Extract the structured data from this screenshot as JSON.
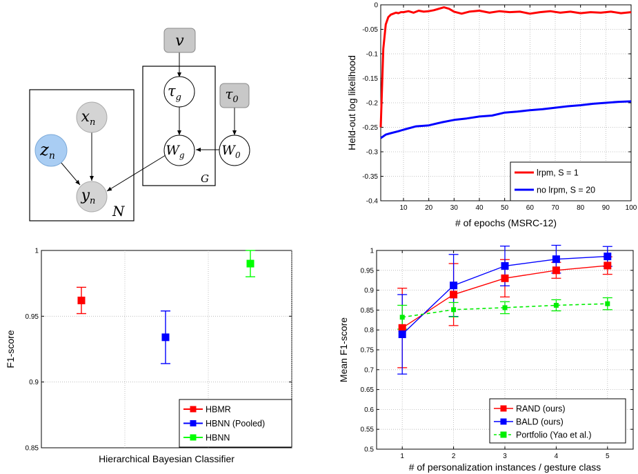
{
  "diagram": {
    "nodes": {
      "v": "v",
      "tau_g": "τ",
      "tau_g_sub": "g",
      "tau_0": "τ",
      "tau_0_sub": "0",
      "x_n": "x",
      "x_n_sub": "n",
      "z_n": "z",
      "z_n_sub": "n",
      "y_n": "y",
      "y_n_sub": "n",
      "W_g": "W",
      "W_g_sub": "g",
      "W_0": "W",
      "W_0_sub": "0"
    },
    "plates": {
      "N": "N",
      "G": "G"
    },
    "colors": {
      "observed": "#d4d4d4",
      "latent": "#ffffff",
      "highlight": "#a9cdf3",
      "hyper": "#c8c8c8"
    }
  },
  "chart_data": [
    {
      "type": "line",
      "xlabel": "# of epochs (MSRC-12)",
      "ylabel": "Held-out log likelihood",
      "xlim": [
        1,
        100
      ],
      "ylim": [
        -0.4,
        0
      ],
      "xticks": [
        10,
        20,
        30,
        40,
        50,
        60,
        70,
        80,
        90,
        100
      ],
      "yticks": [
        0,
        -0.05,
        -0.1,
        -0.15,
        -0.2,
        -0.25,
        -0.3,
        -0.35,
        -0.4
      ],
      "ytick_labels": [
        "0",
        "-0.05",
        "-0.1",
        "-0.15",
        "-0.2",
        "-0.25",
        "-0.3",
        "-0.35",
        "-0.4"
      ],
      "grid": true,
      "legend_position": "bottom-right",
      "series": [
        {
          "name": "lrpm, S = 1",
          "color": "#ff0000",
          "x": [
            1,
            2,
            3,
            4,
            5,
            6,
            7,
            8,
            9,
            10,
            12,
            14,
            16,
            18,
            20,
            22,
            24,
            26,
            28,
            30,
            33,
            36,
            40,
            44,
            48,
            52,
            56,
            60,
            64,
            68,
            72,
            76,
            80,
            84,
            88,
            92,
            96,
            100
          ],
          "values": [
            -0.25,
            -0.09,
            -0.04,
            -0.025,
            -0.02,
            -0.018,
            -0.016,
            -0.017,
            -0.015,
            -0.015,
            -0.013,
            -0.016,
            -0.012,
            -0.014,
            -0.013,
            -0.011,
            -0.008,
            -0.005,
            -0.008,
            -0.014,
            -0.018,
            -0.014,
            -0.012,
            -0.016,
            -0.013,
            -0.015,
            -0.014,
            -0.018,
            -0.015,
            -0.013,
            -0.016,
            -0.014,
            -0.017,
            -0.015,
            -0.016,
            -0.014,
            -0.017,
            -0.015
          ]
        },
        {
          "name": "no lrpm, S = 20",
          "color": "#0000ff",
          "x": [
            1,
            3,
            5,
            8,
            10,
            15,
            20,
            25,
            30,
            35,
            40,
            45,
            50,
            55,
            60,
            65,
            70,
            75,
            80,
            85,
            90,
            95,
            100
          ],
          "values": [
            -0.272,
            -0.265,
            -0.262,
            -0.258,
            -0.255,
            -0.248,
            -0.246,
            -0.24,
            -0.235,
            -0.232,
            -0.228,
            -0.226,
            -0.22,
            -0.218,
            -0.215,
            -0.213,
            -0.21,
            -0.207,
            -0.205,
            -0.202,
            -0.2,
            -0.198,
            -0.197
          ]
        }
      ]
    },
    {
      "type": "scatter",
      "xlabel": "Hierarchical Bayesian Classifier",
      "ylabel": "F1-score",
      "ylim": [
        0.85,
        1
      ],
      "yticks": [
        0.85,
        0.9,
        0.95,
        1
      ],
      "ytick_labels": [
        "0.85",
        "0.9",
        "0.95",
        "1"
      ],
      "grid": true,
      "legend_position": "bottom-right",
      "series": [
        {
          "name": "HBMR",
          "color": "#ff0000",
          "x": 1,
          "value": 0.962,
          "err": 0.01
        },
        {
          "name": "HBNN (Pooled)",
          "color": "#0000ff",
          "x": 2,
          "value": 0.934,
          "err": 0.02
        },
        {
          "name": "HBNN",
          "color": "#00ff00",
          "x": 3,
          "value": 0.99,
          "err": 0.01
        }
      ]
    },
    {
      "type": "line",
      "xlabel": "# of personalization instances / gesture class",
      "ylabel": "Mean F1-score",
      "xlim": [
        0.5,
        5.5
      ],
      "ylim": [
        0.5,
        1
      ],
      "xticks": [
        1,
        2,
        3,
        4,
        5
      ],
      "yticks": [
        0.5,
        0.55,
        0.6,
        0.65,
        0.7,
        0.75,
        0.8,
        0.85,
        0.9,
        0.95,
        1
      ],
      "ytick_labels": [
        "0.5",
        "0.55",
        "0.6",
        "0.65",
        "0.7",
        "0.75",
        "0.8",
        "0.85",
        "0.9",
        "0.95",
        "1"
      ],
      "grid": true,
      "legend_position": "bottom-right",
      "series": [
        {
          "name": "RAND (ours)",
          "color": "#ff0000",
          "x": [
            1,
            2,
            3,
            4,
            5
          ],
          "values": [
            0.805,
            0.889,
            0.93,
            0.95,
            0.962
          ],
          "err": [
            0.1,
            0.078,
            0.047,
            0.02,
            0.022
          ],
          "dashed": false
        },
        {
          "name": "BALD (ours)",
          "color": "#0000ff",
          "x": [
            1,
            2,
            3,
            4,
            5
          ],
          "values": [
            0.789,
            0.912,
            0.961,
            0.978,
            0.985
          ],
          "err": [
            0.1,
            0.078,
            0.05,
            0.035,
            0.025
          ],
          "dashed": false
        },
        {
          "name": "Portfolio (Yao et al.)",
          "color": "#00ee00",
          "x": [
            1,
            2,
            3,
            4,
            5
          ],
          "values": [
            0.832,
            0.851,
            0.856,
            0.862,
            0.866
          ],
          "err": [
            0.03,
            0.018,
            0.015,
            0.014,
            0.015
          ],
          "dashed": true
        }
      ]
    }
  ]
}
